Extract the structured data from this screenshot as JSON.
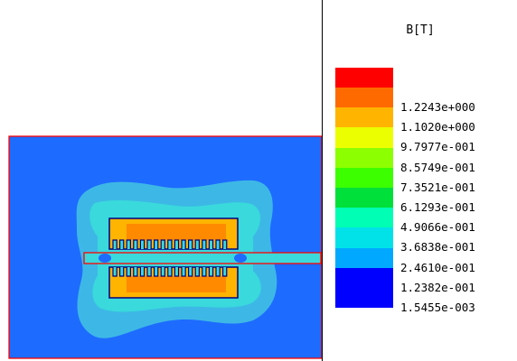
{
  "legend": {
    "title": "B[T]",
    "levels": [
      {
        "label": "1.2243e+000",
        "color": "#ff0000"
      },
      {
        "label": "1.1020e+000",
        "color": "#ff6a00"
      },
      {
        "label": "9.7977e-001",
        "color": "#ffb400"
      },
      {
        "label": "8.5749e-001",
        "color": "#ecff00"
      },
      {
        "label": "7.3521e-001",
        "color": "#8cff00"
      },
      {
        "label": "6.1293e-001",
        "color": "#3cff00"
      },
      {
        "label": "4.9066e-001",
        "color": "#00e03a"
      },
      {
        "label": "3.6838e-001",
        "color": "#00ffb4"
      },
      {
        "label": "2.4610e-001",
        "color": "#00e2e8"
      },
      {
        "label": "1.2382e-001",
        "color": "#00a8ff"
      },
      {
        "label": "1.5455e-003",
        "color": "#0000ff"
      }
    ],
    "top_swatch_color": "#ff0000"
  },
  "plot": {
    "background_color": "#1e6bff",
    "outline_color": "#ff0000",
    "coil_outline_color": "#000080"
  }
}
